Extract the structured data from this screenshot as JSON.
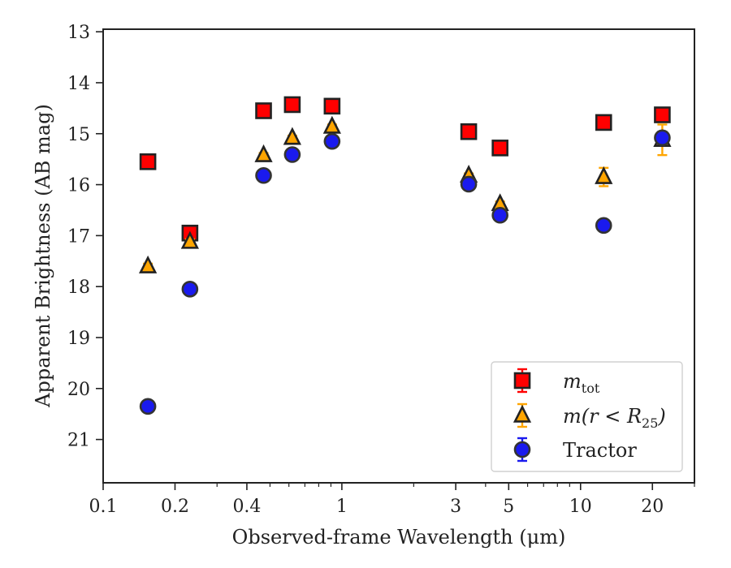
{
  "chart_data": {
    "type": "scatter",
    "title": "",
    "xlabel": "Observed-frame Wavelength (μm)",
    "ylabel": "Apparent Brightness (AB mag)",
    "x_scale": "log",
    "xlim": [
      0.1,
      30
    ],
    "ylim": [
      21.85,
      12.95
    ],
    "y_inverted": true,
    "grid": false,
    "legend_position": "lower-right",
    "x_ticks": [
      {
        "value": 0.1,
        "label": "0.1"
      },
      {
        "value": 0.2,
        "label": "0.2"
      },
      {
        "value": 0.4,
        "label": "0.4"
      },
      {
        "value": 1,
        "label": "1"
      },
      {
        "value": 3,
        "label": "3"
      },
      {
        "value": 5,
        "label": "5"
      },
      {
        "value": 10,
        "label": "10"
      },
      {
        "value": 20,
        "label": "20"
      }
    ],
    "x_minor_ticks": [
      0.3,
      0.5,
      0.6,
      0.7,
      0.8,
      0.9,
      2,
      4,
      6,
      7,
      8,
      9,
      30
    ],
    "y_ticks": [
      {
        "value": 13,
        "label": "13"
      },
      {
        "value": 14,
        "label": "14"
      },
      {
        "value": 15,
        "label": "15"
      },
      {
        "value": 16,
        "label": "16"
      },
      {
        "value": 17,
        "label": "17"
      },
      {
        "value": 18,
        "label": "18"
      },
      {
        "value": 19,
        "label": "19"
      },
      {
        "value": 20,
        "label": "20"
      },
      {
        "value": 21,
        "label": "21"
      }
    ],
    "series": [
      {
        "name_parts": {
          "main": "m",
          "sub": "tot"
        },
        "marker": "square",
        "face_color": "#ff0000",
        "edge_color": "#222222",
        "err_color": "#ff0000",
        "points": [
          {
            "x": 0.154,
            "y": 15.55,
            "err": 0.04
          },
          {
            "x": 0.231,
            "y": 16.95,
            "err": 0.05
          },
          {
            "x": 0.47,
            "y": 14.55,
            "err": 0.03
          },
          {
            "x": 0.62,
            "y": 14.43,
            "err": 0.03
          },
          {
            "x": 0.91,
            "y": 14.46,
            "err": 0.03
          },
          {
            "x": 3.4,
            "y": 14.96,
            "err": 0.03
          },
          {
            "x": 4.6,
            "y": 15.28,
            "err": 0.04
          },
          {
            "x": 12.5,
            "y": 14.78,
            "err": 0.05
          },
          {
            "x": 22.0,
            "y": 14.63,
            "err": 0.08
          }
        ]
      },
      {
        "name_parts": {
          "pre": "m(r < R",
          "sub": "25",
          "post": ")"
        },
        "marker": "triangle",
        "face_color": "#ffa500",
        "edge_color": "#222222",
        "err_color": "#ffa500",
        "points": [
          {
            "x": 0.154,
            "y": 17.6,
            "err": 0.05
          },
          {
            "x": 0.231,
            "y": 17.12,
            "err": 0.05
          },
          {
            "x": 0.47,
            "y": 15.42,
            "err": 0.04
          },
          {
            "x": 0.62,
            "y": 15.08,
            "err": 0.04
          },
          {
            "x": 0.91,
            "y": 14.86,
            "err": 0.04
          },
          {
            "x": 3.4,
            "y": 15.82,
            "err": 0.04
          },
          {
            "x": 4.6,
            "y": 16.38,
            "err": 0.05
          },
          {
            "x": 12.5,
            "y": 15.85,
            "err": 0.18
          },
          {
            "x": 22.0,
            "y": 15.12,
            "err": 0.3
          }
        ]
      },
      {
        "name": "Tractor",
        "marker": "circle",
        "face_color": "#1a1aee",
        "edge_color": "#333333",
        "err_color": "#1a1aee",
        "points": [
          {
            "x": 0.154,
            "y": 20.35,
            "err": 0.08
          },
          {
            "x": 0.231,
            "y": 18.05,
            "err": 0.06
          },
          {
            "x": 0.47,
            "y": 15.82,
            "err": 0.05
          },
          {
            "x": 0.62,
            "y": 15.41,
            "err": 0.05
          },
          {
            "x": 0.91,
            "y": 15.15,
            "err": 0.05
          },
          {
            "x": 3.4,
            "y": 15.99,
            "err": 0.05
          },
          {
            "x": 4.6,
            "y": 16.6,
            "err": 0.06
          },
          {
            "x": 12.5,
            "y": 16.8,
            "err": 0.08
          },
          {
            "x": 22.0,
            "y": 15.08,
            "err": 0.12
          }
        ]
      }
    ]
  }
}
